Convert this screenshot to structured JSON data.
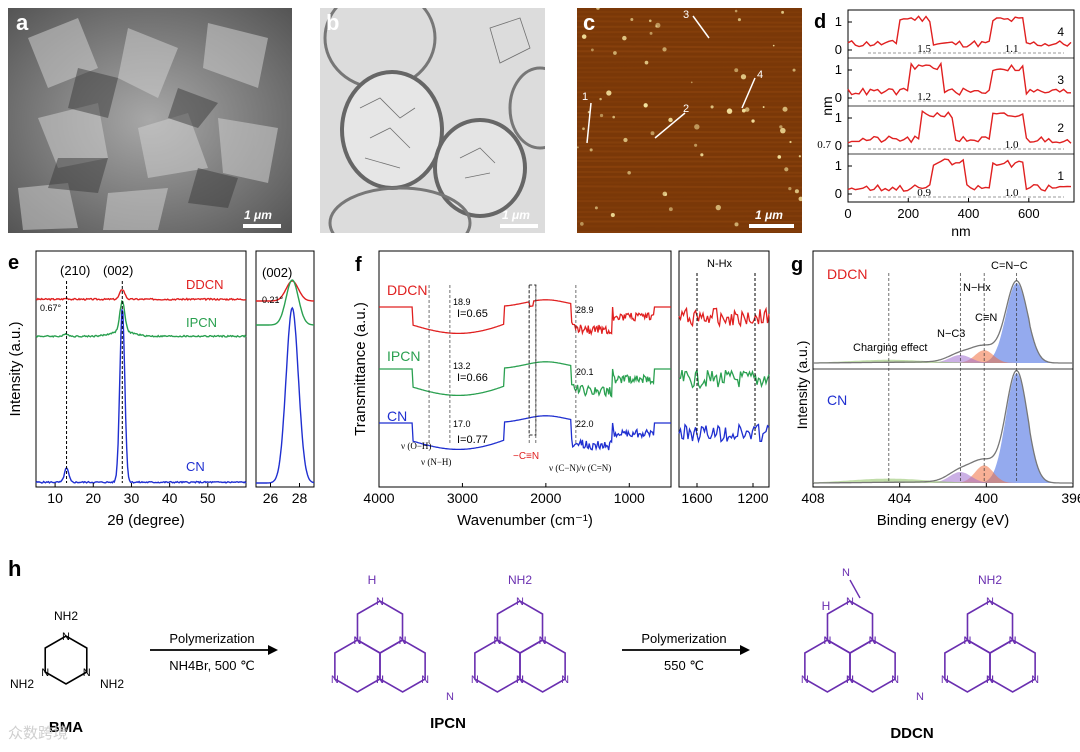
{
  "panel_labels": {
    "a": "a",
    "b": "b",
    "c": "c",
    "d": "d",
    "e": "e",
    "f": "f",
    "g": "g",
    "h": "h"
  },
  "scale_bar": "1 μm",
  "panel_c": {
    "markers": [
      "1",
      "2",
      "3",
      "4"
    ]
  },
  "colors": {
    "ddcn": "#e02020",
    "ipcn": "#2aa050",
    "cn": "#1f2fd0",
    "purple": "#6a2fb0",
    "green_fill": "#8cc060",
    "orange_fill": "#f07040",
    "purple_fill": "#a070d0",
    "blue_fill": "#3c64e0"
  },
  "chart_data": [
    {
      "type": "line",
      "panel": "d",
      "xlabel": "nm",
      "ylabel": "nm",
      "xlim": [
        0,
        750
      ],
      "x_ticks": [
        "0",
        "200",
        "400",
        "600"
      ],
      "y_ticks": [
        "0",
        "1"
      ],
      "series": [
        {
          "name": "4",
          "annotations": [
            "1.5",
            "1.1"
          ]
        },
        {
          "name": "3",
          "annotations": [
            "1.2"
          ]
        },
        {
          "name": "2",
          "annotations": [
            "0.7",
            "1.0"
          ]
        },
        {
          "name": "1",
          "annotations": [
            "0.9",
            "1.0"
          ]
        }
      ]
    },
    {
      "type": "line",
      "panel": "e",
      "xlabel": "2θ (degree)",
      "ylabel": "Intensity (a.u.)",
      "xlim": [
        5,
        60
      ],
      "x_ticks": [
        "10",
        "20",
        "30",
        "40",
        "50"
      ],
      "zoom_x_ticks": [
        "26",
        "28"
      ],
      "peaks": [
        "(210)",
        "(002)"
      ],
      "zoom_peak": "(002)",
      "shift_annotations": [
        "0.67°",
        "0.21°"
      ],
      "series": [
        {
          "name": "DDCN"
        },
        {
          "name": "IPCN"
        },
        {
          "name": "CN"
        }
      ]
    },
    {
      "type": "line",
      "panel": "f",
      "xlabel": "Wavenumber (cm⁻¹)",
      "ylabel": "Transmittance (a.u.)",
      "xlim": [
        4000,
        500
      ],
      "x_ticks": [
        "4000",
        "3000",
        "2000",
        "1000"
      ],
      "zoom_x_ticks": [
        "1600",
        "1200"
      ],
      "zoom_label": "N-Hx",
      "band_labels": [
        "ν (O−H)",
        "ν (N−H)",
        "−C≡N",
        "ν (C−N)/ν (C=N)"
      ],
      "series": [
        {
          "name": "DDCN",
          "values": [
            "18.9",
            "28.9"
          ],
          "ratio": "I=0.65"
        },
        {
          "name": "IPCN",
          "values": [
            "13.2",
            "20.1"
          ],
          "ratio": "I=0.66"
        },
        {
          "name": "CN",
          "values": [
            "17.0",
            "22.0"
          ],
          "ratio": "I=0.77"
        }
      ]
    },
    {
      "type": "line",
      "panel": "g",
      "xlabel": "Binding energy (eV)",
      "ylabel": "Intensity (a.u.)",
      "xlim": [
        408,
        396
      ],
      "x_ticks": [
        "408",
        "404",
        "400",
        "396"
      ],
      "components": [
        "C=N−C",
        "N−Hx",
        "C≡N",
        "N−C3",
        "Charging effect"
      ],
      "series": [
        {
          "name": "DDCN"
        },
        {
          "name": "CN"
        }
      ]
    }
  ],
  "scheme": {
    "reactant": "BMA",
    "step1_top": "Polymerization",
    "step1_bottom": "NH4Br, 500 ℃",
    "step2_top": "Polymerization",
    "step2_bottom": "550 ℃",
    "intermediate": "IPCN",
    "product": "DDCN",
    "atoms": {
      "N": "N",
      "H": "H",
      "NH2": "NH2"
    }
  },
  "watermark": "众数跨境"
}
